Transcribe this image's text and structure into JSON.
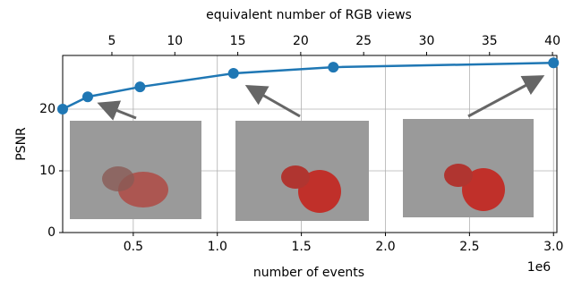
{
  "chart_data": {
    "type": "line",
    "title": "equivalent number of RGB views",
    "x_label": "number of events",
    "y_label": "PSNR",
    "x_offset_label": "1e6",
    "x": [
      80000,
      229000,
      540000,
      1096000,
      1690000,
      3000000
    ],
    "series": [
      {
        "name": "PSNR",
        "color": "#1f77b4",
        "values": [
          20.0,
          22.0,
          23.6,
          25.8,
          26.8,
          27.5
        ]
      }
    ],
    "xlim": [
      80000,
      3020000
    ],
    "xticks": [
      {
        "value": 500000,
        "label": "0.5"
      },
      {
        "value": 1000000,
        "label": "1.0"
      },
      {
        "value": 1500000,
        "label": "1.5"
      },
      {
        "value": 2000000,
        "label": "2.0"
      },
      {
        "value": 2500000,
        "label": "2.5"
      },
      {
        "value": 3000000,
        "label": "3.0"
      }
    ],
    "x2lim": [
      1.09,
      40.35
    ],
    "x2ticks": [
      5,
      10,
      15,
      20,
      25,
      30,
      35,
      40
    ],
    "ylim": [
      0,
      28.7
    ],
    "yticks": [
      0,
      10,
      20
    ],
    "grid": true
  }
}
